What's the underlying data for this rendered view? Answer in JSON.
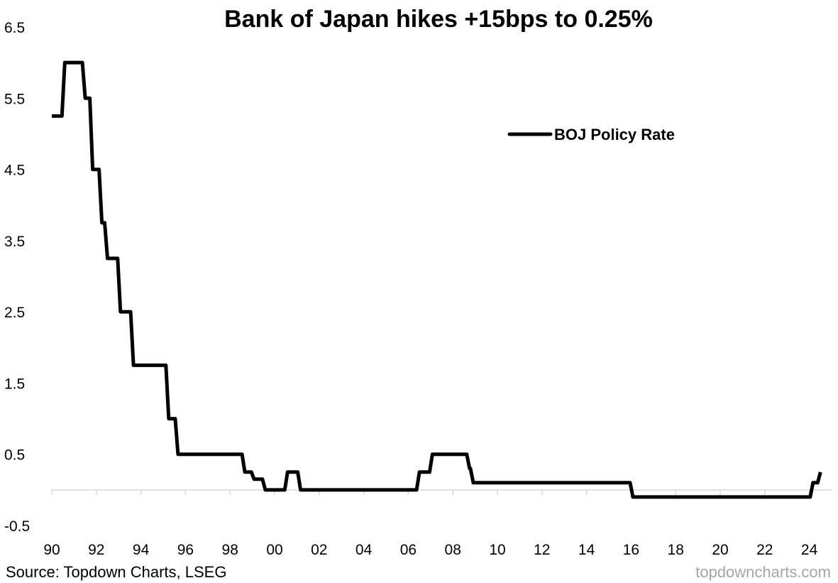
{
  "chart_data": {
    "type": "line",
    "title": "Bank of Japan hikes +15bps to 0.25%",
    "xlabel": "",
    "ylabel": "",
    "y_ticks": [
      "6.5",
      "5.5",
      "4.5",
      "3.5",
      "2.5",
      "1.5",
      "0.5",
      "-0.5"
    ],
    "ylim": [
      -0.5,
      6.5
    ],
    "x_ticks": [
      "90",
      "92",
      "94",
      "96",
      "98",
      "00",
      "02",
      "04",
      "06",
      "08",
      "10",
      "12",
      "14",
      "16",
      "18",
      "20",
      "22",
      "24"
    ],
    "xlim": [
      "1990-01",
      "2024-08"
    ],
    "grid": false,
    "legend": "top-right",
    "series": [
      {
        "name": "BOJ Policy Rate",
        "color": "#000000",
        "points": [
          [
            "1990-01",
            5.25
          ],
          [
            "1990-08",
            6.0
          ],
          [
            "1991-07",
            5.5
          ],
          [
            "1991-11",
            4.5
          ],
          [
            "1992-04",
            3.75
          ],
          [
            "1992-07",
            3.25
          ],
          [
            "1993-02",
            2.5
          ],
          [
            "1993-09",
            1.75
          ],
          [
            "1995-04",
            1.0
          ],
          [
            "1995-09",
            0.5
          ],
          [
            "1998-09",
            0.25
          ],
          [
            "1999-02",
            0.15
          ],
          [
            "1999-08",
            0.0
          ],
          [
            "2000-08",
            0.25
          ],
          [
            "2001-03",
            0.0
          ],
          [
            "2006-07",
            0.25
          ],
          [
            "2007-02",
            0.5
          ],
          [
            "2008-10",
            0.3
          ],
          [
            "2008-12",
            0.1
          ],
          [
            "2016-02",
            -0.1
          ],
          [
            "2024-03",
            0.1
          ],
          [
            "2024-07",
            0.25
          ]
        ]
      }
    ]
  },
  "footer": {
    "source": "Source: Topdown Charts, LSEG",
    "watermark": "topdowncharts.com"
  }
}
